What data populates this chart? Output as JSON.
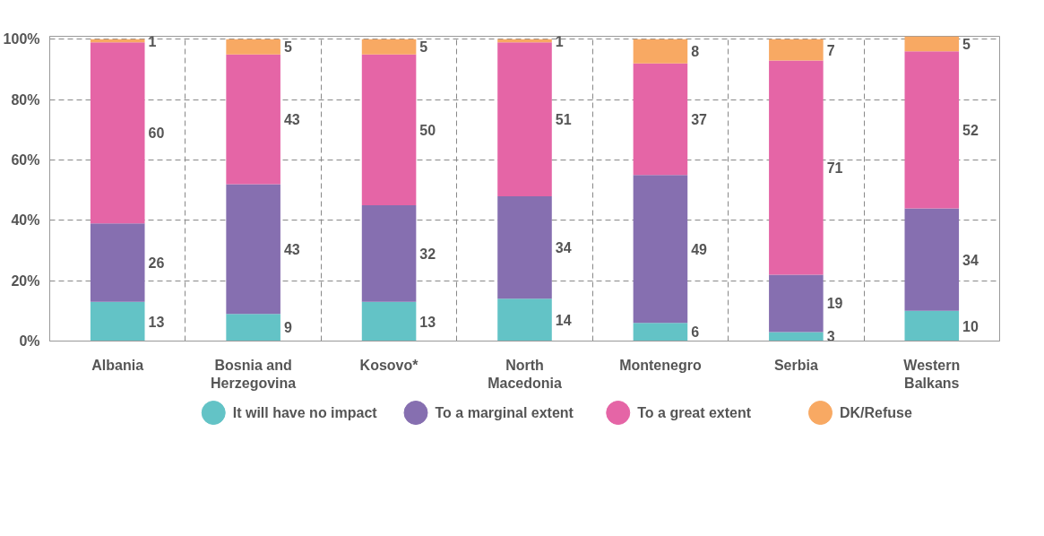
{
  "chart_data": {
    "type": "bar",
    "stacked": true,
    "categories": [
      "Albania",
      "Bosnia and Herzegovina",
      "Kosovo*",
      "North Macedonia",
      "Montenegro",
      "Serbia",
      "Western Balkans"
    ],
    "series": [
      {
        "name": "It will have no impact",
        "color": "#63c3c6",
        "values": [
          13,
          9,
          13,
          14,
          6,
          3,
          10
        ]
      },
      {
        "name": "To a marginal extent",
        "color": "#866fb0",
        "values": [
          26,
          43,
          32,
          34,
          49,
          19,
          34
        ]
      },
      {
        "name": "To a great extent",
        "color": "#e565a6",
        "values": [
          60,
          43,
          50,
          51,
          37,
          71,
          52
        ]
      },
      {
        "name": "DK/Refuse",
        "color": "#f8a963",
        "values": [
          1,
          5,
          5,
          1,
          8,
          7,
          5
        ]
      }
    ],
    "ylim": [
      0,
      101
    ],
    "yticks": [
      {
        "value": 0,
        "label": "0%"
      },
      {
        "value": 20,
        "label": "20%"
      },
      {
        "value": 40,
        "label": "40%"
      },
      {
        "value": 60,
        "label": "60%"
      },
      {
        "value": 80,
        "label": "80%"
      },
      {
        "value": 100,
        "label": "100%"
      }
    ],
    "grid": true,
    "legend": "bottom",
    "data_labels": true
  }
}
